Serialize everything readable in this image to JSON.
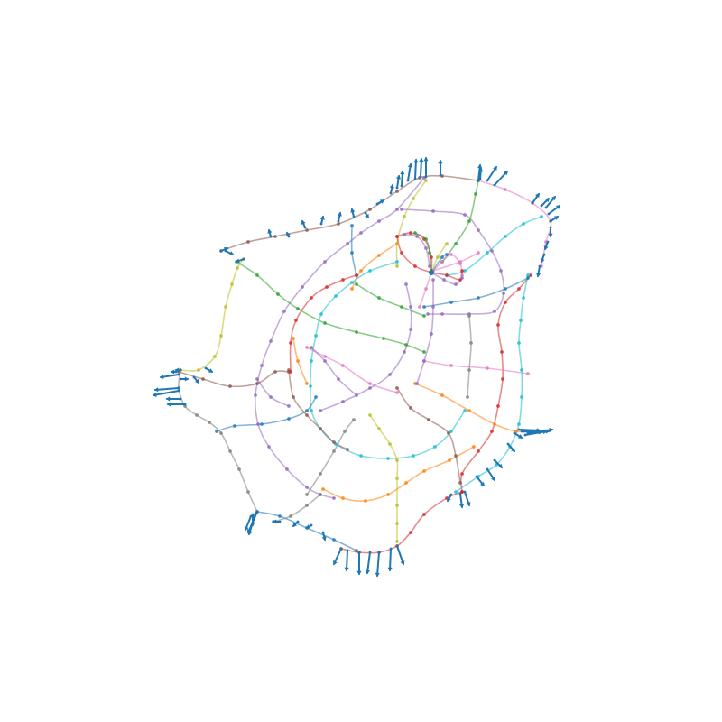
{
  "colors": {
    "arrow": "#1f77b4",
    "palette": [
      "#1f77b4",
      "#ff7f0e",
      "#2ca02c",
      "#d62728",
      "#9467bd",
      "#8c564b",
      "#e377c2",
      "#7f7f7f",
      "#bcbd22",
      "#17becf"
    ]
  },
  "figure": {
    "type": "curved-graph",
    "axes": "hidden",
    "grid": false,
    "legend": "none"
  },
  "icons": {
    "edge_end": "arrow-icon",
    "vertex": "dot-icon"
  }
}
